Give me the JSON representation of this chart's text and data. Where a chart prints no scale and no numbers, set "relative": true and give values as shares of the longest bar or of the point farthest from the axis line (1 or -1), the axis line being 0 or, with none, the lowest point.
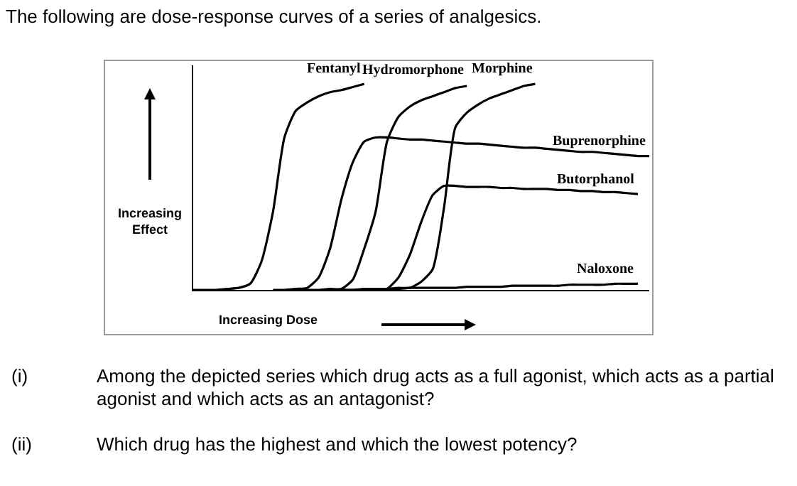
{
  "chart_data": {
    "type": "line",
    "relative": true,
    "title": "The following are dose-response curves of a series of analgesics.",
    "xlabel": "Increasing Dose",
    "ylabel": "Increasing Effect",
    "legend": false,
    "grid": false,
    "marker": "none",
    "line_style": "solid",
    "categories": [
      null,
      null,
      null,
      null,
      null,
      null,
      null,
      null,
      null,
      null,
      null,
      null,
      null,
      null,
      null,
      null,
      null,
      null,
      null,
      null,
      null,
      null,
      null,
      null,
      null,
      null,
      null,
      null,
      null,
      null,
      null,
      null,
      null,
      null,
      null,
      null,
      null,
      null,
      null,
      null,
      null
    ],
    "series": [
      {
        "name": "Fentanyl",
        "color": "#000000",
        "values": [
          0,
          0,
          0,
          0.005,
          0.01,
          0.03,
          0.14,
          0.38,
          0.74,
          0.87,
          0.91,
          0.94,
          0.96,
          0.97,
          0.985,
          1.0,
          null,
          null,
          null,
          null,
          null,
          null,
          null,
          null,
          null,
          null,
          null,
          null,
          null,
          null,
          null,
          null,
          null,
          null,
          null,
          null,
          null,
          null,
          null,
          null,
          null
        ]
      },
      {
        "name": "Hydromorphone",
        "color": "#000000",
        "values": [
          null,
          null,
          null,
          null,
          null,
          null,
          null,
          null,
          null,
          0,
          0,
          0,
          0.005,
          0.005,
          0.05,
          0.2,
          0.38,
          0.72,
          0.84,
          0.89,
          0.92,
          0.94,
          0.96,
          0.98,
          0.99,
          null,
          null,
          null,
          null,
          null,
          null,
          null,
          null,
          null,
          null,
          null,
          null,
          null,
          null,
          null,
          null
        ]
      },
      {
        "name": "Morphine",
        "color": "#000000",
        "values": [
          null,
          null,
          null,
          null,
          null,
          null,
          null,
          null,
          null,
          null,
          null,
          null,
          0,
          0,
          0,
          0,
          0.005,
          0.005,
          0.01,
          0.01,
          0.04,
          0.1,
          0.4,
          0.79,
          0.86,
          0.9,
          0.93,
          0.95,
          0.97,
          0.99,
          1.0,
          null,
          null,
          null,
          null,
          null,
          null,
          null,
          null,
          null,
          null
        ]
      },
      {
        "name": "Buprenorphine",
        "color": "#000000",
        "values": [
          null,
          null,
          null,
          null,
          null,
          null,
          null,
          0,
          0,
          0.005,
          0.01,
          0.06,
          0.2,
          0.44,
          0.62,
          0.72,
          0.74,
          0.74,
          0.735,
          0.73,
          0.73,
          0.725,
          0.72,
          0.715,
          0.71,
          0.71,
          0.705,
          0.7,
          0.695,
          0.69,
          0.69,
          0.685,
          0.68,
          0.675,
          0.67,
          0.67,
          0.665,
          0.66,
          0.655,
          0.65,
          0.65
        ]
      },
      {
        "name": "Butorphanol",
        "color": "#000000",
        "values": [
          null,
          null,
          null,
          null,
          null,
          null,
          null,
          null,
          null,
          null,
          null,
          null,
          null,
          null,
          null,
          0,
          0,
          0.005,
          0.06,
          0.17,
          0.33,
          0.46,
          0.505,
          0.505,
          0.5,
          0.5,
          0.5,
          0.495,
          0.495,
          0.49,
          0.49,
          0.49,
          0.485,
          0.485,
          0.48,
          0.48,
          0.475,
          0.475,
          0.47,
          0.465,
          null
        ]
      },
      {
        "name": "Naloxone",
        "color": "#000000",
        "values": [
          null,
          null,
          null,
          null,
          null,
          null,
          null,
          null,
          null,
          null,
          null,
          null,
          0,
          0,
          0,
          0.005,
          0.005,
          0.005,
          0.005,
          0.01,
          0.01,
          0.01,
          0.01,
          0.01,
          0.015,
          0.015,
          0.015,
          0.015,
          0.02,
          0.02,
          0.02,
          0.02,
          0.02,
          0.025,
          0.025,
          0.025,
          0.025,
          0.03,
          0.03,
          0.03,
          null
        ]
      }
    ],
    "annotations": [
      "(i)",
      "Among the depicted series which drug acts as a full agonist, which acts as a partial agonist and which acts as an antagonist?",
      "(ii)",
      "Which drug has the highest and which the lowest potency?"
    ]
  }
}
